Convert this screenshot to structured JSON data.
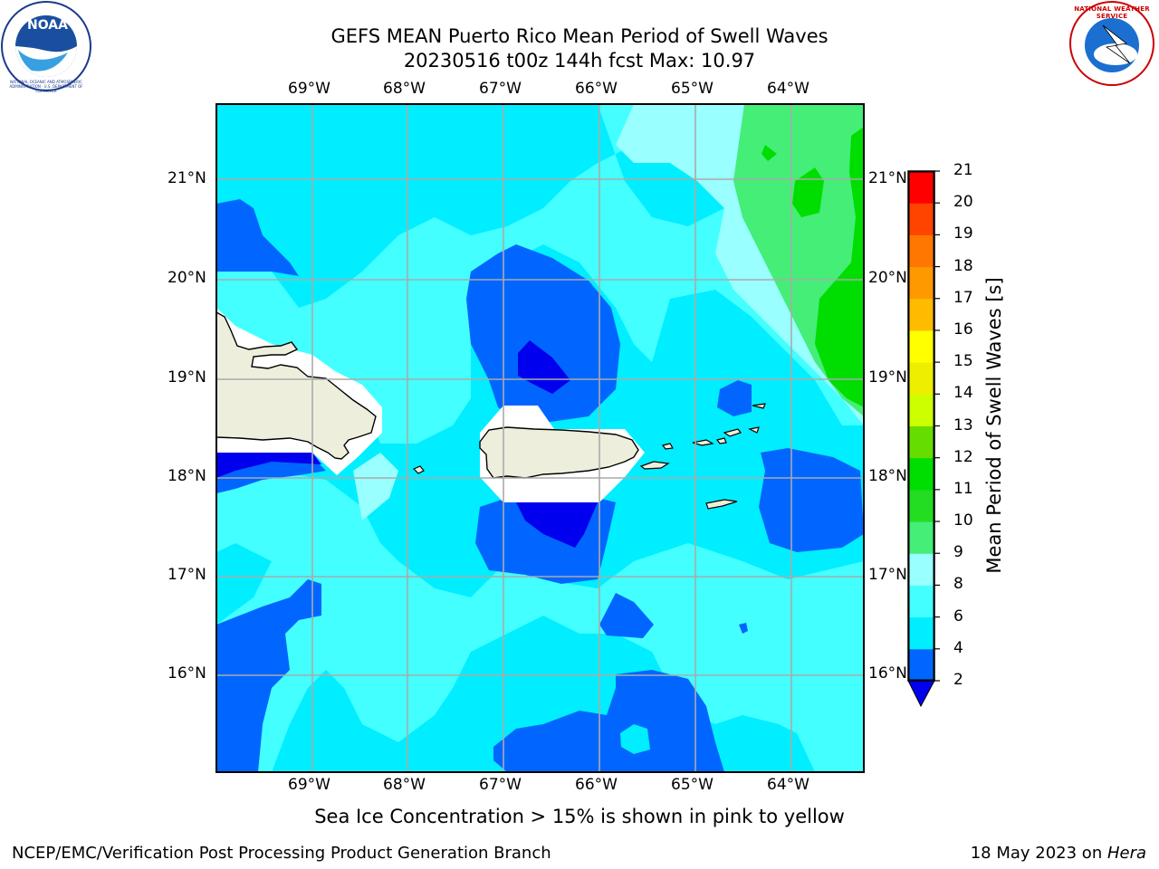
{
  "title": {
    "line1": "GEFS MEAN Puerto Rico Mean Period of Swell Waves",
    "line2": "20230516 t00z 144h fcst   Max: 10.97"
  },
  "map": {
    "lon_labels": [
      "69°W",
      "68°W",
      "67°W",
      "66°W",
      "65°W",
      "64°W"
    ],
    "lat_labels": [
      "21°N",
      "20°N",
      "19°N",
      "18°N",
      "17°N",
      "16°N"
    ]
  },
  "colorbar": {
    "label": "Mean Period of Swell Waves [s]",
    "ticks": [
      "21",
      "20",
      "19",
      "18",
      "17",
      "16",
      "15",
      "14",
      "13",
      "12",
      "11",
      "10",
      "9",
      "8",
      "6",
      "4",
      "2"
    ],
    "levels": [
      {
        "label": "2-4",
        "color": "#0066ff"
      },
      {
        "label": "4-6",
        "color": "#00eeff"
      },
      {
        "label": "6-8",
        "color": "#44ffff"
      },
      {
        "label": "8-9",
        "color": "#99ffff"
      },
      {
        "label": "9-10",
        "color": "#44ee77"
      },
      {
        "label": "10-11",
        "color": "#22dd22"
      },
      {
        "label": "11-12",
        "color": "#00dd00"
      },
      {
        "label": "12-13",
        "color": "#66dd00"
      },
      {
        "label": "13-14",
        "color": "#ccff00"
      },
      {
        "label": "14-15",
        "color": "#eeee00"
      },
      {
        "label": "15-16",
        "color": "#ffff00"
      },
      {
        "label": "16-17",
        "color": "#ffbb00"
      },
      {
        "label": "17-18",
        "color": "#ff9900"
      },
      {
        "label": "18-19",
        "color": "#ff7700"
      },
      {
        "label": "19-20",
        "color": "#ff4400"
      },
      {
        "label": "20-21",
        "color": "#ff0000"
      }
    ],
    "under_color": "#0000ee"
  },
  "colors": {
    "land": "#eeeedc",
    "grid": "#aaaaaa",
    "low": "#0000ee"
  },
  "note": "Sea Ice Concentration > 15% is shown in pink to yellow",
  "footer": {
    "left": "NCEP/EMC/Verification Post Processing Product Generation Branch",
    "right_date": "18 May 2023 on ",
    "right_host": "Hera"
  },
  "logos": {
    "noaa_text": "NOAA",
    "nws_text": "NATIONAL WEATHER SERVICE",
    "noaa_ring_text": "NATIONAL OCEANIC AND ATMOSPHERIC ADMINISTRATION · U.S. DEPARTMENT OF COMMERCE"
  }
}
